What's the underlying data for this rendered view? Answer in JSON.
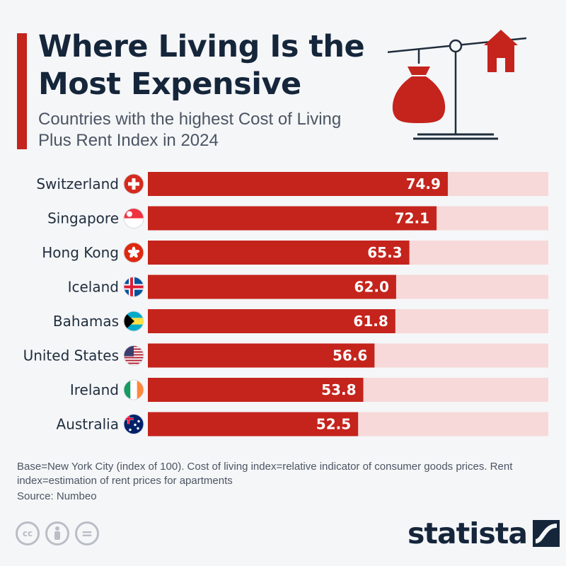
{
  "header": {
    "title": "Where Living Is the Most Expensive",
    "subtitle": "Countries with the highest Cost of Living Plus Rent Index in 2024"
  },
  "chart_data": {
    "type": "bar",
    "orientation": "horizontal",
    "title": "Where Living Is the Most Expensive",
    "subtitle": "Countries with the highest Cost of Living Plus Rent Index in 2024",
    "categories": [
      "Switzerland",
      "Singapore",
      "Hong Kong",
      "Iceland",
      "Bahamas",
      "United States",
      "Ireland",
      "Australia"
    ],
    "values": [
      74.9,
      72.1,
      65.3,
      62.0,
      61.8,
      56.6,
      53.8,
      52.5
    ],
    "value_labels": [
      "74.9",
      "72.1",
      "65.3",
      "62.0",
      "61.8",
      "56.6",
      "53.8",
      "52.5"
    ],
    "xlim": [
      0,
      100
    ],
    "grid": false,
    "legend": "none"
  },
  "flags": [
    "switzerland",
    "singapore",
    "hong-kong",
    "iceland",
    "bahamas",
    "united-states",
    "ireland",
    "australia"
  ],
  "colors": {
    "bar": "#c4241c",
    "track": "#f7d9d9",
    "title": "#15263b",
    "accent": "#c4241c"
  },
  "footer": {
    "notes": "Base=New York City (index of 100). Cost of living index=relative indicator of consumer goods prices. Rent index=estimation of rent prices for apartments",
    "source": "Source: Numbeo",
    "license_icons": [
      "cc-icon",
      "attribution-icon",
      "no-derivatives-icon"
    ],
    "license_labels": [
      "cc",
      "="
    ],
    "brand": "statista"
  }
}
